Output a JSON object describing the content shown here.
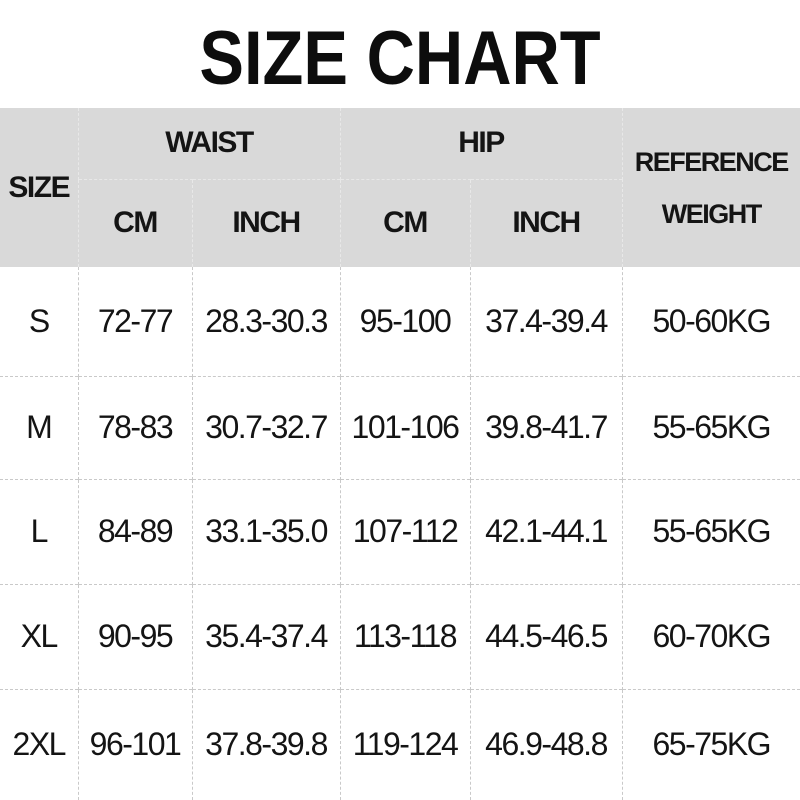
{
  "title": "SIZE CHART",
  "colors": {
    "header_bg": "#d9d9d9",
    "body_bg": "#ffffff",
    "text": "#111111",
    "grid_line_body": "#c9c9c9",
    "grid_line_header": "#e8e8e8"
  },
  "table": {
    "headers": {
      "size": "SIZE",
      "waist": "WAIST",
      "hip": "HIP",
      "waist_cm": "CM",
      "waist_inch": "INCH",
      "hip_cm": "CM",
      "hip_inch": "INCH",
      "reference_line1": "REFERENCE",
      "reference_line2": "WEIGHT"
    },
    "rows": [
      [
        "S",
        "72-77",
        "28.3-30.3",
        "95-100",
        "37.4-39.4",
        "50-60KG"
      ],
      [
        "M",
        "78-83",
        "30.7-32.7",
        "101-106",
        "39.8-41.7",
        "55-65KG"
      ],
      [
        "L",
        "84-89",
        "33.1-35.0",
        "107-112",
        "42.1-44.1",
        "55-65KG"
      ],
      [
        "XL",
        "90-95",
        "35.4-37.4",
        "113-118",
        "44.5-46.5",
        "60-70KG"
      ],
      [
        "2XL",
        "96-101",
        "37.8-39.8",
        "119-124",
        "46.9-48.8",
        "65-75KG"
      ]
    ]
  },
  "chart_data": {
    "type": "table",
    "title": "SIZE CHART",
    "columns": [
      "SIZE",
      "WAIST CM",
      "WAIST INCH",
      "HIP CM",
      "HIP INCH",
      "REFERENCE WEIGHT"
    ],
    "column_groups": [
      {
        "label": "SIZE",
        "span": 1
      },
      {
        "label": "WAIST",
        "span": 2,
        "subcolumns": [
          "CM",
          "INCH"
        ]
      },
      {
        "label": "HIP",
        "span": 2,
        "subcolumns": [
          "CM",
          "INCH"
        ]
      },
      {
        "label": "REFERENCE WEIGHT",
        "span": 1
      }
    ],
    "rows": [
      [
        "S",
        "72-77",
        "28.3-30.3",
        "95-100",
        "37.4-39.4",
        "50-60KG"
      ],
      [
        "M",
        "78-83",
        "30.7-32.7",
        "101-106",
        "39.8-41.7",
        "55-65KG"
      ],
      [
        "L",
        "84-89",
        "33.1-35.0",
        "107-112",
        "42.1-44.1",
        "55-65KG"
      ],
      [
        "XL",
        "90-95",
        "35.4-37.4",
        "113-118",
        "44.5-46.5",
        "60-70KG"
      ],
      [
        "2XL",
        "96-101",
        "37.8-39.8",
        "119-124",
        "46.9-48.8",
        "65-75KG"
      ]
    ]
  }
}
